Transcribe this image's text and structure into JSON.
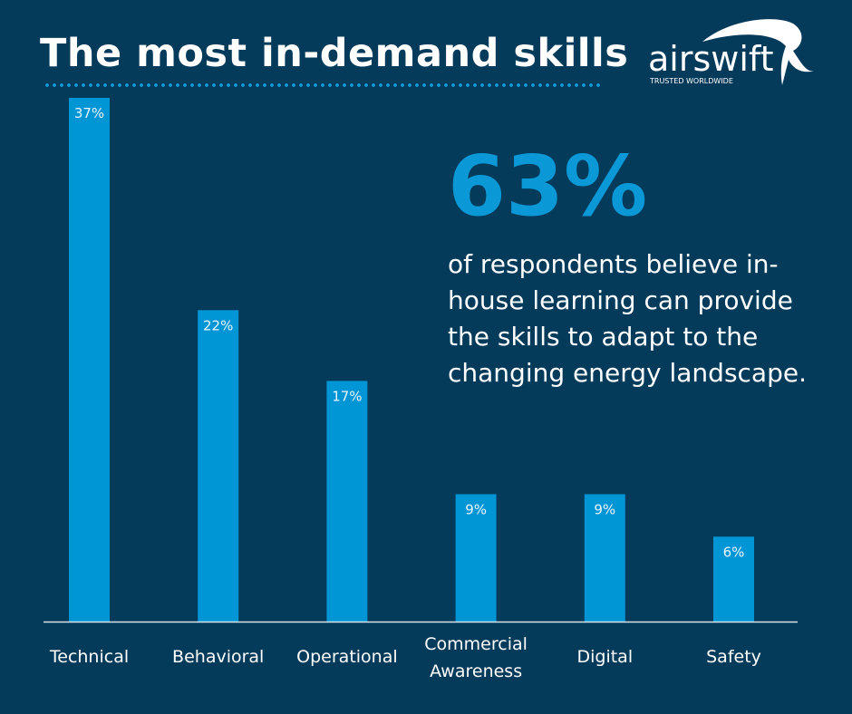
{
  "title": "The most in-demand skills",
  "logo": {
    "text": "airswift",
    "tagline": "TRUSTED WORLDWIDE"
  },
  "callout": {
    "value": "63%",
    "text": "of respondents believe in-house learning can provide the skills to adapt to the changing energy landscape."
  },
  "colors": {
    "background": "#043a5a",
    "bar": "#0095d5",
    "accent": "#0a98d6"
  },
  "chart_data": {
    "type": "bar",
    "categories": [
      [
        "Technical"
      ],
      [
        "Behavioral"
      ],
      [
        "Operational"
      ],
      [
        "Commercial",
        "Awareness"
      ],
      [
        "Digital"
      ],
      [
        "Safety"
      ]
    ],
    "values": [
      37,
      22,
      17,
      9,
      9,
      6
    ],
    "data_labels": [
      "37%",
      "22%",
      "17%",
      "9%",
      "9%",
      "6%"
    ],
    "unit": "%",
    "ylim": [
      0,
      37
    ],
    "grid": false
  }
}
